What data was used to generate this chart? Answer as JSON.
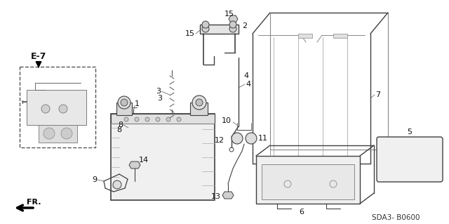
{
  "bg_color": "#ffffff",
  "line_color": "#404040",
  "diagram_code": "SDA3- B0600",
  "figsize": [
    6.4,
    3.19
  ],
  "dpi": 100
}
